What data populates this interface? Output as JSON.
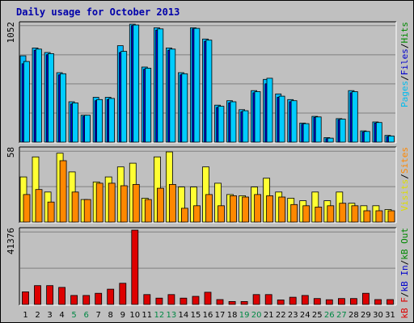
{
  "colors": {
    "background": "#c0c0c0",
    "title": "#0000aa",
    "hits": "#00bbff",
    "files": "#0000dd",
    "pages": "#00ccff",
    "visits": "#ffff33",
    "sites": "#ff8800",
    "kbin": "#0000cc",
    "kbout": "#008800",
    "kbf": "#dd0000",
    "weekend": "#008844",
    "weekday": "#000000",
    "grid": "#808080"
  },
  "chart_data": [
    {
      "type": "bar",
      "title": "Daily usage for October 2013",
      "ymax_label": "1052",
      "ylim": [
        0,
        1052
      ],
      "legend": [
        {
          "label": "Pages",
          "color": "#00bbee"
        },
        {
          "label": "/",
          "color": "#000000"
        },
        {
          "label": "Files",
          "color": "#0000cc"
        },
        {
          "label": "/",
          "color": "#000000"
        },
        {
          "label": "Hits",
          "color": "#008800"
        }
      ],
      "categories": [
        "1",
        "2",
        "3",
        "4",
        "5",
        "6",
        "7",
        "8",
        "9",
        "10",
        "11",
        "12",
        "13",
        "14",
        "15",
        "16",
        "17",
        "18",
        "19",
        "20",
        "21",
        "22",
        "23",
        "24",
        "25",
        "26",
        "27",
        "28",
        "29",
        "30",
        "31"
      ],
      "series": [
        {
          "name": "Hits",
          "values": [
            770,
            840,
            800,
            620,
            360,
            240,
            400,
            400,
            860,
            1052,
            670,
            1020,
            840,
            620,
            1020,
            920,
            330,
            370,
            290,
            460,
            560,
            430,
            380,
            170,
            230,
            40,
            210,
            460,
            100,
            180,
            60
          ]
        },
        {
          "name": "Files",
          "values": [
            700,
            820,
            780,
            600,
            340,
            230,
            370,
            380,
            800,
            1040,
            650,
            1000,
            820,
            600,
            1010,
            900,
            310,
            350,
            270,
            440,
            520,
            400,
            360,
            160,
            220,
            30,
            200,
            440,
            90,
            170,
            50
          ]
        },
        {
          "name": "Pages",
          "values": [
            720,
            830,
            790,
            610,
            350,
            240,
            380,
            390,
            810,
            1045,
            660,
            1010,
            830,
            610,
            1015,
            910,
            320,
            360,
            280,
            450,
            570,
            410,
            370,
            165,
            225,
            35,
            205,
            450,
            95,
            175,
            55
          ]
        }
      ]
    },
    {
      "type": "bar",
      "ymax_label": "58",
      "ylim": [
        0,
        58
      ],
      "legend": [
        {
          "label": "Visits",
          "color": "#dddd00"
        },
        {
          "label": "/",
          "color": "#000000"
        },
        {
          "label": "Sites",
          "color": "#ff8800"
        }
      ],
      "categories": [
        "1",
        "2",
        "3",
        "4",
        "5",
        "6",
        "7",
        "8",
        "9",
        "10",
        "11",
        "12",
        "13",
        "14",
        "15",
        "16",
        "17",
        "18",
        "19",
        "20",
        "21",
        "22",
        "23",
        "24",
        "25",
        "26",
        "27",
        "28",
        "29",
        "30",
        "31"
      ],
      "series": [
        {
          "name": "Visits",
          "values": [
            36,
            52,
            24,
            55,
            40,
            18,
            32,
            36,
            44,
            47,
            19,
            52,
            56,
            28,
            28,
            44,
            31,
            22,
            21,
            28,
            35,
            24,
            19,
            17,
            24,
            17,
            24,
            15,
            13,
            13,
            10
          ]
        },
        {
          "name": "Sites",
          "values": [
            22,
            26,
            16,
            49,
            24,
            18,
            31,
            31,
            29,
            30,
            18,
            27,
            30,
            11,
            13,
            22,
            13,
            21,
            20,
            22,
            21,
            20,
            14,
            13,
            12,
            13,
            15,
            13,
            9,
            9,
            9
          ]
        }
      ]
    },
    {
      "type": "bar",
      "ymax_label": "41376",
      "ylim": [
        0,
        41376
      ],
      "legend": [
        {
          "label": "kB F",
          "color": "#dd0000"
        },
        {
          "label": "/",
          "color": "#000000"
        },
        {
          "label": "kB In",
          "color": "#0000cc"
        },
        {
          "label": "/",
          "color": "#000000"
        },
        {
          "label": "kB Out",
          "color": "#008800"
        }
      ],
      "categories": [
        "1",
        "2",
        "3",
        "4",
        "5",
        "6",
        "7",
        "8",
        "9",
        "10",
        "11",
        "12",
        "13",
        "14",
        "15",
        "16",
        "17",
        "18",
        "19",
        "20",
        "21",
        "22",
        "23",
        "24",
        "25",
        "26",
        "27",
        "28",
        "29",
        "30",
        "31"
      ],
      "series": [
        {
          "name": "kB F",
          "values": [
            7000,
            10500,
            10500,
            9500,
            5000,
            5000,
            6200,
            8500,
            11800,
            41376,
            5500,
            3500,
            5500,
            3500,
            4500,
            6800,
            2700,
            1600,
            1600,
            5500,
            5500,
            2500,
            4000,
            5000,
            3300,
            2600,
            3300,
            3300,
            6200,
            2700,
            2700
          ]
        }
      ]
    }
  ],
  "x_ticks": [
    {
      "label": "1",
      "weekend": false
    },
    {
      "label": "2",
      "weekend": false
    },
    {
      "label": "3",
      "weekend": false
    },
    {
      "label": "4",
      "weekend": false
    },
    {
      "label": "5",
      "weekend": true
    },
    {
      "label": "6",
      "weekend": true
    },
    {
      "label": "7",
      "weekend": false
    },
    {
      "label": "8",
      "weekend": false
    },
    {
      "label": "9",
      "weekend": false
    },
    {
      "label": "10",
      "weekend": false
    },
    {
      "label": "11",
      "weekend": false
    },
    {
      "label": "12",
      "weekend": true
    },
    {
      "label": "13",
      "weekend": true
    },
    {
      "label": "14",
      "weekend": false
    },
    {
      "label": "15",
      "weekend": false
    },
    {
      "label": "16",
      "weekend": false
    },
    {
      "label": "17",
      "weekend": false
    },
    {
      "label": "18",
      "weekend": false
    },
    {
      "label": "19",
      "weekend": true
    },
    {
      "label": "20",
      "weekend": true
    },
    {
      "label": "21",
      "weekend": false
    },
    {
      "label": "22",
      "weekend": false
    },
    {
      "label": "23",
      "weekend": false
    },
    {
      "label": "24",
      "weekend": false
    },
    {
      "label": "25",
      "weekend": false
    },
    {
      "label": "26",
      "weekend": true
    },
    {
      "label": "27",
      "weekend": true
    },
    {
      "label": "28",
      "weekend": false
    },
    {
      "label": "29",
      "weekend": false
    },
    {
      "label": "30",
      "weekend": false
    },
    {
      "label": "31",
      "weekend": false
    }
  ]
}
